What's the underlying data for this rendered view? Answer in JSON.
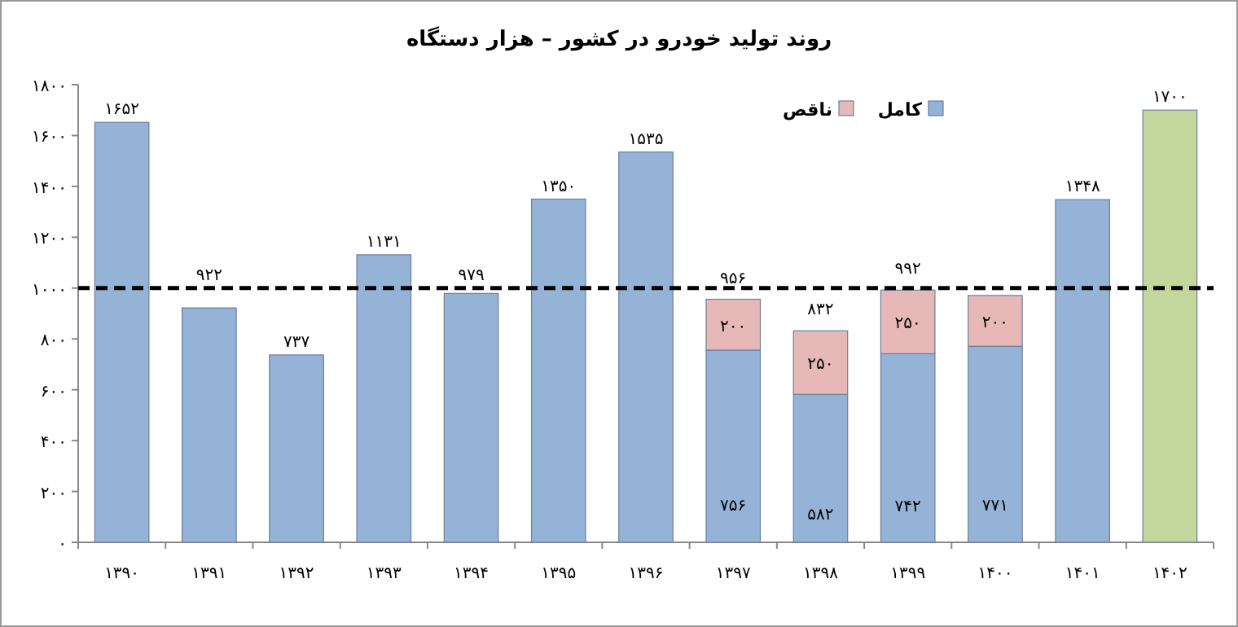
{
  "chart_data": {
    "type": "bar",
    "title": "روند تولید خودرو در کشور – هزار دستگاه",
    "categories": [
      "۱۳۹۰",
      "۱۳۹۱",
      "۱۳۹۲",
      "۱۳۹۳",
      "۱۳۹۴",
      "۱۳۹۵",
      "۱۳۹۶",
      "۱۳۹۷",
      "۱۳۹۸",
      "۱۳۹۹",
      "۱۴۰۰",
      "۱۴۰۱",
      "۱۴۰۲"
    ],
    "stacked": true,
    "series": [
      {
        "name": "کامل",
        "color": "#95b3d7",
        "colors": [
          "#95b3d7",
          "#95b3d7",
          "#95b3d7",
          "#95b3d7",
          "#95b3d7",
          "#95b3d7",
          "#95b3d7",
          "#95b3d7",
          "#95b3d7",
          "#95b3d7",
          "#95b3d7",
          "#95b3d7",
          "#c3d69b"
        ],
        "values": [
          1652,
          922,
          737,
          1131,
          979,
          1350,
          1535,
          756,
          582,
          742,
          771,
          1348,
          1700
        ],
        "value_labels": [
          "۱۶۵۲",
          "۹۲۲",
          "۷۳۷",
          "۱۱۳۱",
          "۹۷۹",
          "۱۳۵۰",
          "۱۵۳۵",
          "۷۵۶",
          "۵۸۲",
          "۷۴۲",
          "۷۷۱",
          "۱۳۴۸",
          "۱۷۰۰"
        ]
      },
      {
        "name": "ناقص",
        "color": "#e6b9b8",
        "values": [
          null,
          null,
          null,
          null,
          null,
          null,
          null,
          200,
          250,
          250,
          200,
          null,
          null
        ],
        "value_labels": [
          null,
          null,
          null,
          null,
          null,
          null,
          null,
          "۲۰۰",
          "۲۵۰",
          "۲۵۰",
          "۲۰۰",
          null,
          null
        ]
      }
    ],
    "totals": [
      null,
      null,
      null,
      null,
      null,
      null,
      null,
      "۹۵۶",
      "۸۳۲",
      "۹۹۲",
      null,
      null,
      null
    ],
    "ylim": [
      0,
      1800
    ],
    "yticks": [
      {
        "value": 0,
        "label": "۰"
      },
      {
        "value": 200,
        "label": "۲۰۰"
      },
      {
        "value": 400,
        "label": "۴۰۰"
      },
      {
        "value": 600,
        "label": "۶۰۰"
      },
      {
        "value": 800,
        "label": "۸۰۰"
      },
      {
        "value": 1000,
        "label": "۱۰۰۰"
      },
      {
        "value": 1200,
        "label": "۱۲۰۰"
      },
      {
        "value": 1400,
        "label": "۱۴۰۰"
      },
      {
        "value": 1600,
        "label": "۱۶۰۰"
      },
      {
        "value": 1800,
        "label": "۱۸۰۰"
      }
    ],
    "ref_lines": [
      {
        "axis": "y",
        "value": 1000,
        "line_style": "dashed",
        "color": "#000000"
      }
    ],
    "legend": "top right"
  }
}
